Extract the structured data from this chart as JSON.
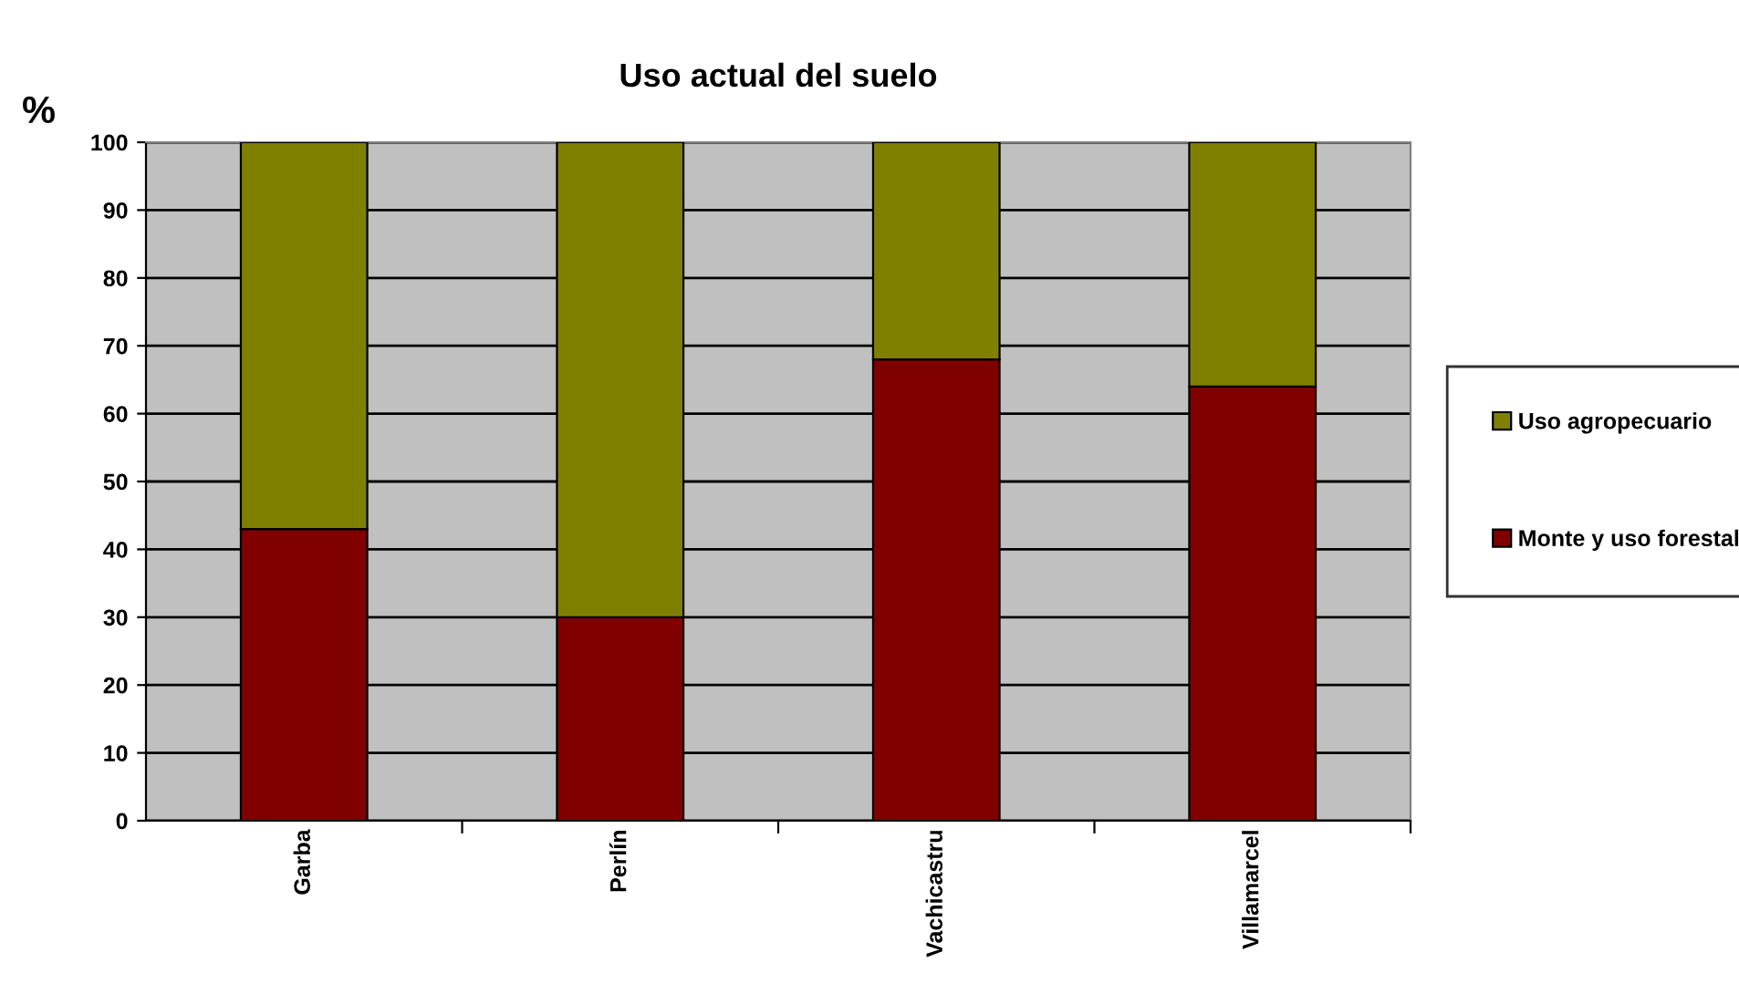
{
  "chart_data": {
    "type": "bar",
    "title": "Uso actual del suelo",
    "ylabel": "%",
    "stacked": true,
    "categories": [
      "Garba",
      "Perlín",
      "Vachicastru",
      "Villamarcel"
    ],
    "series": [
      {
        "name": "Monte y uso forestal",
        "color": "#800000",
        "values": [
          43,
          30,
          68,
          64
        ]
      },
      {
        "name": "Uso agropecuario",
        "color": "#808000",
        "values": [
          57,
          70,
          32,
          36
        ]
      }
    ],
    "ylim": [
      0,
      100
    ],
    "yticks": [
      0,
      10,
      20,
      30,
      40,
      50,
      60,
      70,
      80,
      90,
      100
    ],
    "grid": "y",
    "legend": "right"
  }
}
